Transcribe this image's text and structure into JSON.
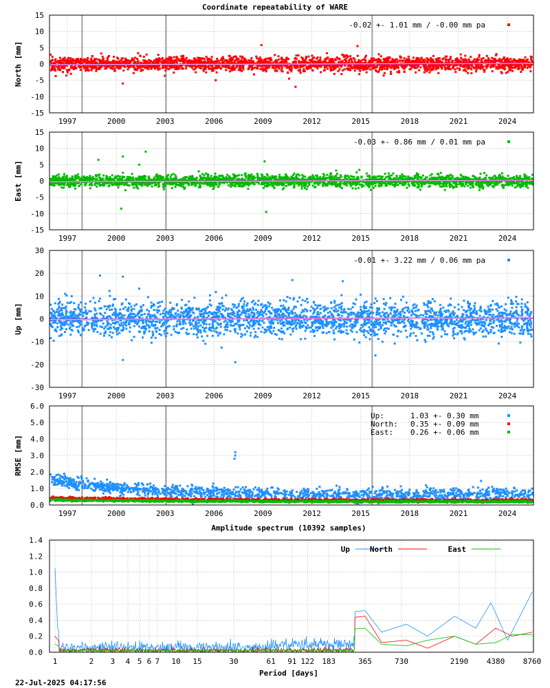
{
  "title": "Coordinate repeatability of WARE",
  "timestamp": "22-Jul-2025 04:17:56",
  "colors": {
    "north": "#ff0000",
    "east": "#00bb00",
    "up": "#1e90ff",
    "trend": "#cc33cc",
    "event": "#a0a0a0",
    "grid": "#b0b0b0"
  },
  "chart_data": [
    {
      "type": "scatter",
      "name": "north",
      "ylabel": "North [mm]",
      "xlim": [
        1995.9,
        2025.6
      ],
      "ylim": [
        -15,
        15
      ],
      "yticks": [
        -15,
        -10,
        -5,
        0,
        5,
        10,
        15
      ],
      "xticks": [
        1997,
        2000,
        2003,
        2006,
        2009,
        2012,
        2015,
        2018,
        2021,
        2024
      ],
      "event_lines": [
        1997.9,
        2003.05,
        2015.7
      ],
      "legend": "-0.02 +- 1.01 mm / -0.00 mm pa",
      "mean": -0.02,
      "scatter": 1.01,
      "rate": -0.0,
      "outliers": [
        [
          2000.4,
          -6.0
        ],
        [
          2011.0,
          -7.0
        ],
        [
          2014.8,
          5.5
        ],
        [
          2008.9,
          5.8
        ],
        [
          2006.1,
          -5.0
        ],
        [
          2010.6,
          -4.5
        ]
      ]
    },
    {
      "type": "scatter",
      "name": "east",
      "ylabel": "East [mm]",
      "xlim": [
        1995.9,
        2025.6
      ],
      "ylim": [
        -15,
        15
      ],
      "yticks": [
        -15,
        -10,
        -5,
        0,
        5,
        10,
        15
      ],
      "xticks": [
        1997,
        2000,
        2003,
        2006,
        2009,
        2012,
        2015,
        2018,
        2021,
        2024
      ],
      "event_lines": [
        1997.9,
        2003.05,
        2015.7
      ],
      "legend": "-0.03 +- 0.86 mm /  0.01 mm pa",
      "mean": -0.03,
      "scatter": 0.86,
      "rate": 0.01,
      "outliers": [
        [
          2000.4,
          7.5
        ],
        [
          2000.3,
          -8.5
        ],
        [
          2001.8,
          9.0
        ],
        [
          2009.2,
          -9.5
        ],
        [
          2009.1,
          6.0
        ],
        [
          1998.9,
          6.5
        ],
        [
          2001.4,
          5.0
        ]
      ]
    },
    {
      "type": "scatter",
      "name": "up",
      "ylabel": "Up [mm]",
      "xlim": [
        1995.9,
        2025.6
      ],
      "ylim": [
        -30,
        30
      ],
      "yticks": [
        -30,
        -20,
        -10,
        0,
        10,
        20,
        30
      ],
      "xticks": [
        1997,
        2000,
        2003,
        2006,
        2009,
        2012,
        2015,
        2018,
        2021,
        2024
      ],
      "event_lines": [
        1997.9,
        2003.05,
        2015.7
      ],
      "legend": "-0.01 +- 3.22 mm /  0.06 mm pa",
      "mean": -0.01,
      "scatter": 3.22,
      "rate": 0.06,
      "outliers": [
        [
          1999.0,
          19.0
        ],
        [
          2000.4,
          18.5
        ],
        [
          2000.4,
          -18.0
        ],
        [
          2007.3,
          -19.0
        ],
        [
          2015.9,
          -16.0
        ],
        [
          2010.8,
          17.0
        ],
        [
          2013.9,
          16.5
        ]
      ]
    },
    {
      "type": "scatter",
      "name": "rmse",
      "ylabel": "RMSE [mm]",
      "xlim": [
        1995.9,
        2025.6
      ],
      "ylim": [
        0,
        6
      ],
      "yticks": [
        "0.0",
        "1.0",
        "2.0",
        "3.0",
        "4.0",
        "5.0",
        "6.0"
      ],
      "xticks": [
        1997,
        2000,
        2003,
        2006,
        2009,
        2012,
        2015,
        2018,
        2021,
        2024
      ],
      "event_lines": [
        1997.9,
        2003.05,
        2015.7
      ],
      "legend": [
        {
          "label": "Up:",
          "value": "1.03 +- 0.30 mm",
          "series": "up"
        },
        {
          "label": "North:",
          "value": "0.35 +- 0.09 mm",
          "series": "north"
        },
        {
          "label": "East:",
          "value": "0.26 +- 0.06 mm",
          "series": "east"
        }
      ],
      "series": [
        {
          "name": "Up",
          "mean": 1.03,
          "sd": 0.3
        },
        {
          "name": "North",
          "mean": 0.35,
          "sd": 0.09
        },
        {
          "name": "East",
          "mean": 0.26,
          "sd": 0.06
        }
      ]
    },
    {
      "type": "line",
      "name": "spectrum",
      "title": "Amplitude spectrum (10392 samples)",
      "xlabel": "Period [days]",
      "xscale": "log",
      "xlim": [
        1,
        8760
      ],
      "ylim": [
        0,
        1.4
      ],
      "yticks": [
        "0.0",
        "0.2",
        "0.4",
        "0.6",
        "0.8",
        "1.0",
        "1.2",
        "1.4"
      ],
      "xticks": [
        1,
        2,
        3,
        4,
        5,
        6,
        7,
        10,
        15,
        30,
        61,
        91,
        122,
        183,
        365,
        730,
        2190,
        4380,
        8760
      ],
      "legend": [
        "Up",
        "North",
        "East"
      ],
      "series": [
        {
          "name": "Up",
          "x": [
            1,
            1.05,
            1.2,
            365,
            500,
            800,
            1200,
            2000,
            3000,
            4000,
            5500,
            8760
          ],
          "y": [
            1.05,
            0.3,
            0.12,
            0.52,
            0.25,
            0.35,
            0.2,
            0.45,
            0.3,
            0.62,
            0.15,
            0.75
          ]
        },
        {
          "name": "North",
          "x": [
            1,
            1.2,
            365,
            500,
            800,
            1200,
            2000,
            3000,
            4380,
            6000,
            8760
          ],
          "y": [
            0.2,
            0.05,
            0.45,
            0.12,
            0.15,
            0.05,
            0.2,
            0.1,
            0.3,
            0.2,
            0.25
          ]
        },
        {
          "name": "East",
          "x": [
            1,
            1.2,
            365,
            500,
            800,
            1200,
            2000,
            3000,
            4380,
            6000,
            8760
          ],
          "y": [
            0.1,
            0.04,
            0.3,
            0.1,
            0.08,
            0.15,
            0.2,
            0.1,
            0.12,
            0.22,
            0.22
          ]
        }
      ]
    }
  ]
}
